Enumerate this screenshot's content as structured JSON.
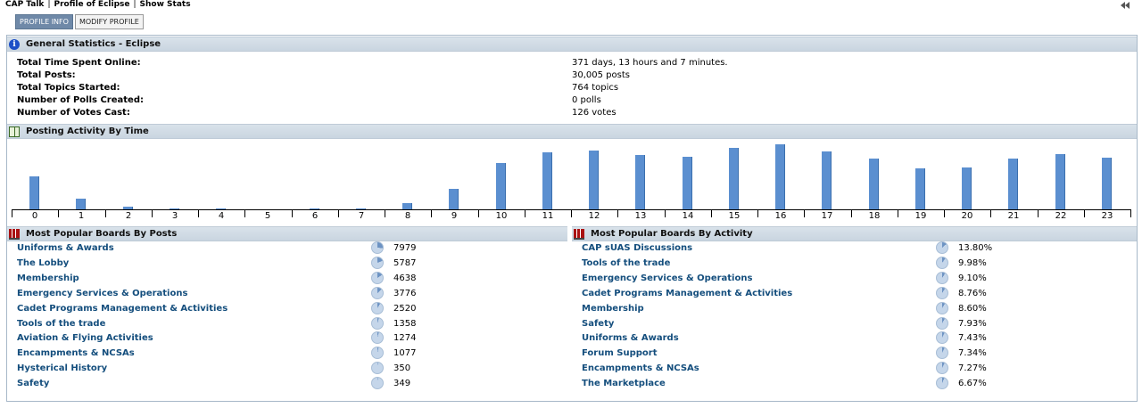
{
  "breadcrumbs": [
    "CAP Talk",
    "Profile of Eclipse",
    "Show Stats"
  ],
  "tabs": [
    {
      "label": "PROFILE INFO",
      "active": true
    },
    {
      "label": "MODIFY PROFILE",
      "active": false
    }
  ],
  "general": {
    "title": "General Statistics - Eclipse",
    "rows": [
      {
        "label": "Total Time Spent Online:",
        "value": "371 days, 13 hours and 7 minutes."
      },
      {
        "label": "Total Posts:",
        "value": "30,005 posts"
      },
      {
        "label": "Total Topics Started:",
        "value": "764 topics"
      },
      {
        "label": "Number of Polls Created:",
        "value": "0 polls"
      },
      {
        "label": "Number of Votes Cast:",
        "value": "126 votes"
      }
    ]
  },
  "activity": {
    "title": "Posting Activity By Time",
    "chart_data": {
      "type": "bar",
      "categories": [
        "0",
        "1",
        "2",
        "3",
        "4",
        "5",
        "6",
        "7",
        "8",
        "9",
        "10",
        "11",
        "12",
        "13",
        "14",
        "15",
        "16",
        "17",
        "18",
        "19",
        "20",
        "21",
        "22",
        "23"
      ],
      "values": [
        51,
        16,
        4,
        1,
        1,
        0,
        1,
        1,
        9,
        32,
        71,
        87,
        91,
        84,
        81,
        94,
        100,
        89,
        78,
        63,
        64,
        78,
        85,
        80
      ],
      "ylim": [
        0,
        100
      ]
    }
  },
  "by_posts": {
    "title": "Most Popular Boards By Posts",
    "items": [
      {
        "name": "Uniforms & Awards",
        "value": "7979",
        "share": 0.266
      },
      {
        "name": "The Lobby",
        "value": "5787",
        "share": 0.193
      },
      {
        "name": "Membership",
        "value": "4638",
        "share": 0.155
      },
      {
        "name": "Emergency Services & Operations",
        "value": "3776",
        "share": 0.126
      },
      {
        "name": "Cadet Programs Management & Activities",
        "value": "2520",
        "share": 0.084
      },
      {
        "name": "Tools of the trade",
        "value": "1358",
        "share": 0.045
      },
      {
        "name": "Aviation & Flying Activities",
        "value": "1274",
        "share": 0.042
      },
      {
        "name": "Encampments & NCSAs",
        "value": "1077",
        "share": 0.036
      },
      {
        "name": "Hysterical History",
        "value": "350",
        "share": 0.012
      },
      {
        "name": "Safety",
        "value": "349",
        "share": 0.012
      }
    ]
  },
  "by_activity": {
    "title": "Most Popular Boards By Activity",
    "items": [
      {
        "name": "CAP sUAS Discussions",
        "value": "13.80%",
        "share": 0.138
      },
      {
        "name": "Tools of the trade",
        "value": "9.98%",
        "share": 0.0998
      },
      {
        "name": "Emergency Services & Operations",
        "value": "9.10%",
        "share": 0.091
      },
      {
        "name": "Cadet Programs Management & Activities",
        "value": "8.76%",
        "share": 0.0876
      },
      {
        "name": "Membership",
        "value": "8.60%",
        "share": 0.086
      },
      {
        "name": "Safety",
        "value": "7.93%",
        "share": 0.0793
      },
      {
        "name": "Uniforms & Awards",
        "value": "7.43%",
        "share": 0.0743
      },
      {
        "name": "Forum Support",
        "value": "7.34%",
        "share": 0.0734
      },
      {
        "name": "Encampments & NCSAs",
        "value": "7.27%",
        "share": 0.0727
      },
      {
        "name": "The Marketplace",
        "value": "6.67%",
        "share": 0.0667
      }
    ]
  },
  "colors": {
    "bar": "#5b8fd0",
    "pie_fill": "#6d93c3",
    "pie_bg": "#c5d6ea",
    "link": "#144e7d",
    "header_bg": "#d3dde7",
    "tab_active": "#6f89a8"
  }
}
